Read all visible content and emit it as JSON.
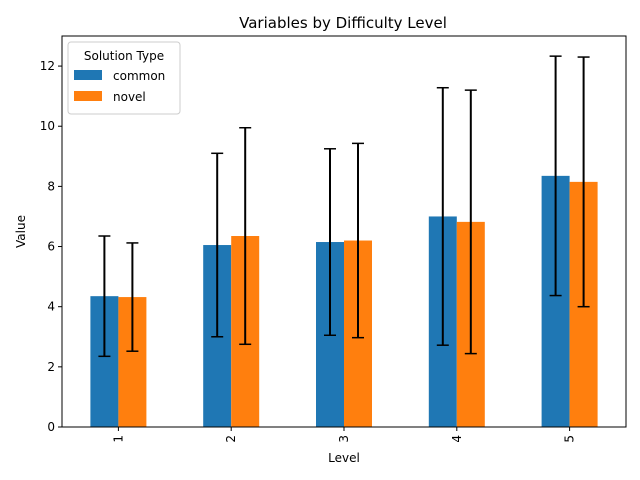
{
  "chart_data": {
    "type": "bar",
    "title": "Variables by Difficulty Level",
    "xlabel": "Level",
    "ylabel": "Value",
    "categories": [
      "1",
      "2",
      "3",
      "4",
      "5"
    ],
    "ylim": [
      0,
      13
    ],
    "yticks": [
      0,
      2,
      4,
      6,
      8,
      10,
      12
    ],
    "grid": false,
    "legend": {
      "title": "Solution Type",
      "placement": "top-left"
    },
    "series": [
      {
        "name": "common",
        "color": "#1f77b4",
        "values": [
          4.35,
          6.05,
          6.15,
          7.0,
          8.35
        ],
        "error": [
          2.0,
          3.05,
          3.1,
          4.28,
          3.98
        ]
      },
      {
        "name": "novel",
        "color": "#ff7f0e",
        "values": [
          4.32,
          6.35,
          6.2,
          6.82,
          8.15
        ],
        "error": [
          1.8,
          3.6,
          3.23,
          4.38,
          4.15
        ]
      }
    ]
  }
}
